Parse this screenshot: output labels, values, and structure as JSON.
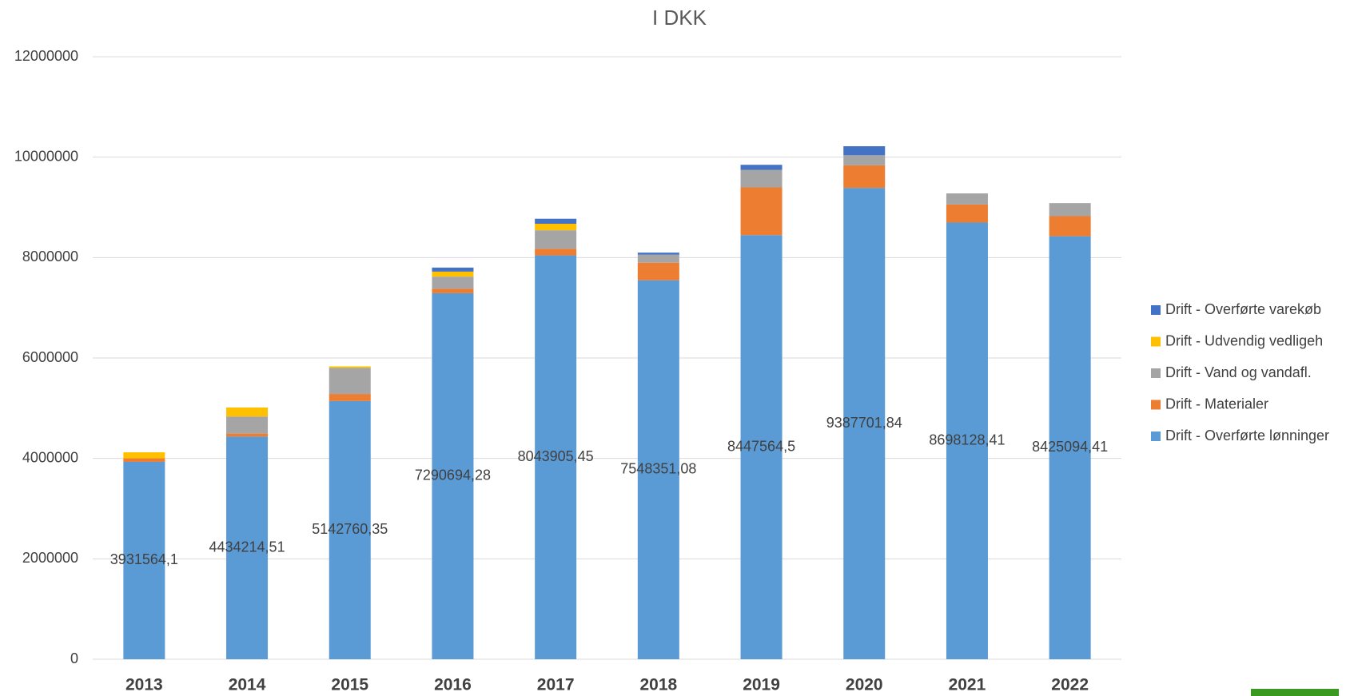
{
  "chart_data": {
    "type": "bar",
    "stacked": true,
    "title": "I DKK",
    "categories": [
      "2013",
      "2014",
      "2015",
      "2016",
      "2017",
      "2018",
      "2019",
      "2020",
      "2021",
      "2022"
    ],
    "series": [
      {
        "name": "Drift - Overførte lønninger",
        "color": "#5b9bd5",
        "values": [
          3931564.1,
          4434214.51,
          5142760.35,
          7290694.28,
          8043905.45,
          7548351.08,
          8447564.5,
          9387701.84,
          8698128.41,
          8425094.41
        ],
        "value_labels": [
          "3931564,1",
          "4434214,51",
          "5142760,35",
          "7290694,28",
          "8043905,45",
          "7548351,08",
          "8447564,5",
          "9387701,84",
          "8698128,41",
          "8425094,41"
        ]
      },
      {
        "name": "Drift - Materialer",
        "color": "#ed7d31",
        "values": [
          70000,
          60000,
          140000,
          90000,
          130000,
          350000,
          950000,
          450000,
          360000,
          400000
        ]
      },
      {
        "name": "Drift - Vand og vandafl.",
        "color": "#a5a5a5",
        "values": [
          0,
          340000,
          520000,
          240000,
          370000,
          160000,
          350000,
          200000,
          220000,
          260000
        ]
      },
      {
        "name": "Drift - Udvendig vedligeh",
        "color": "#ffc000",
        "values": [
          120000,
          180000,
          30000,
          100000,
          130000,
          0,
          0,
          0,
          0,
          0
        ]
      },
      {
        "name": "Drift - Overførte varekøb",
        "color": "#4472c4",
        "values": [
          0,
          0,
          0,
          80000,
          100000,
          40000,
          100000,
          180000,
          0,
          0
        ]
      }
    ],
    "ylim": [
      0,
      12000000
    ],
    "yticks": [
      0,
      2000000,
      4000000,
      6000000,
      8000000,
      10000000,
      12000000
    ],
    "grid": true,
    "legend": "right"
  }
}
